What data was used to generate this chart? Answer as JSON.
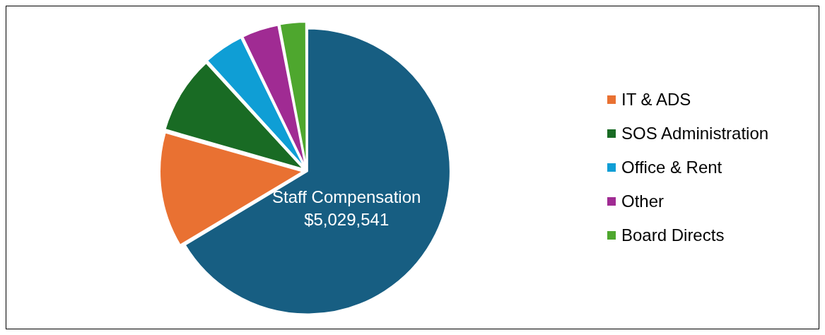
{
  "chart_data": {
    "type": "pie",
    "categories": [
      "Staff Compensation",
      "IT & ADS",
      "SOS Administration",
      "Office & Rent",
      "Other",
      "Board Directs"
    ],
    "values": [
      5029541,
      985000,
      667000,
      348000,
      318000,
      227000
    ],
    "colors": [
      "#175e82",
      "#e97132",
      "#196b24",
      "#0f9ed5",
      "#a02b93",
      "#4ea72e"
    ],
    "value_labels": [
      "$5,029,541",
      null,
      null,
      null,
      null,
      null
    ],
    "legend": "right"
  }
}
